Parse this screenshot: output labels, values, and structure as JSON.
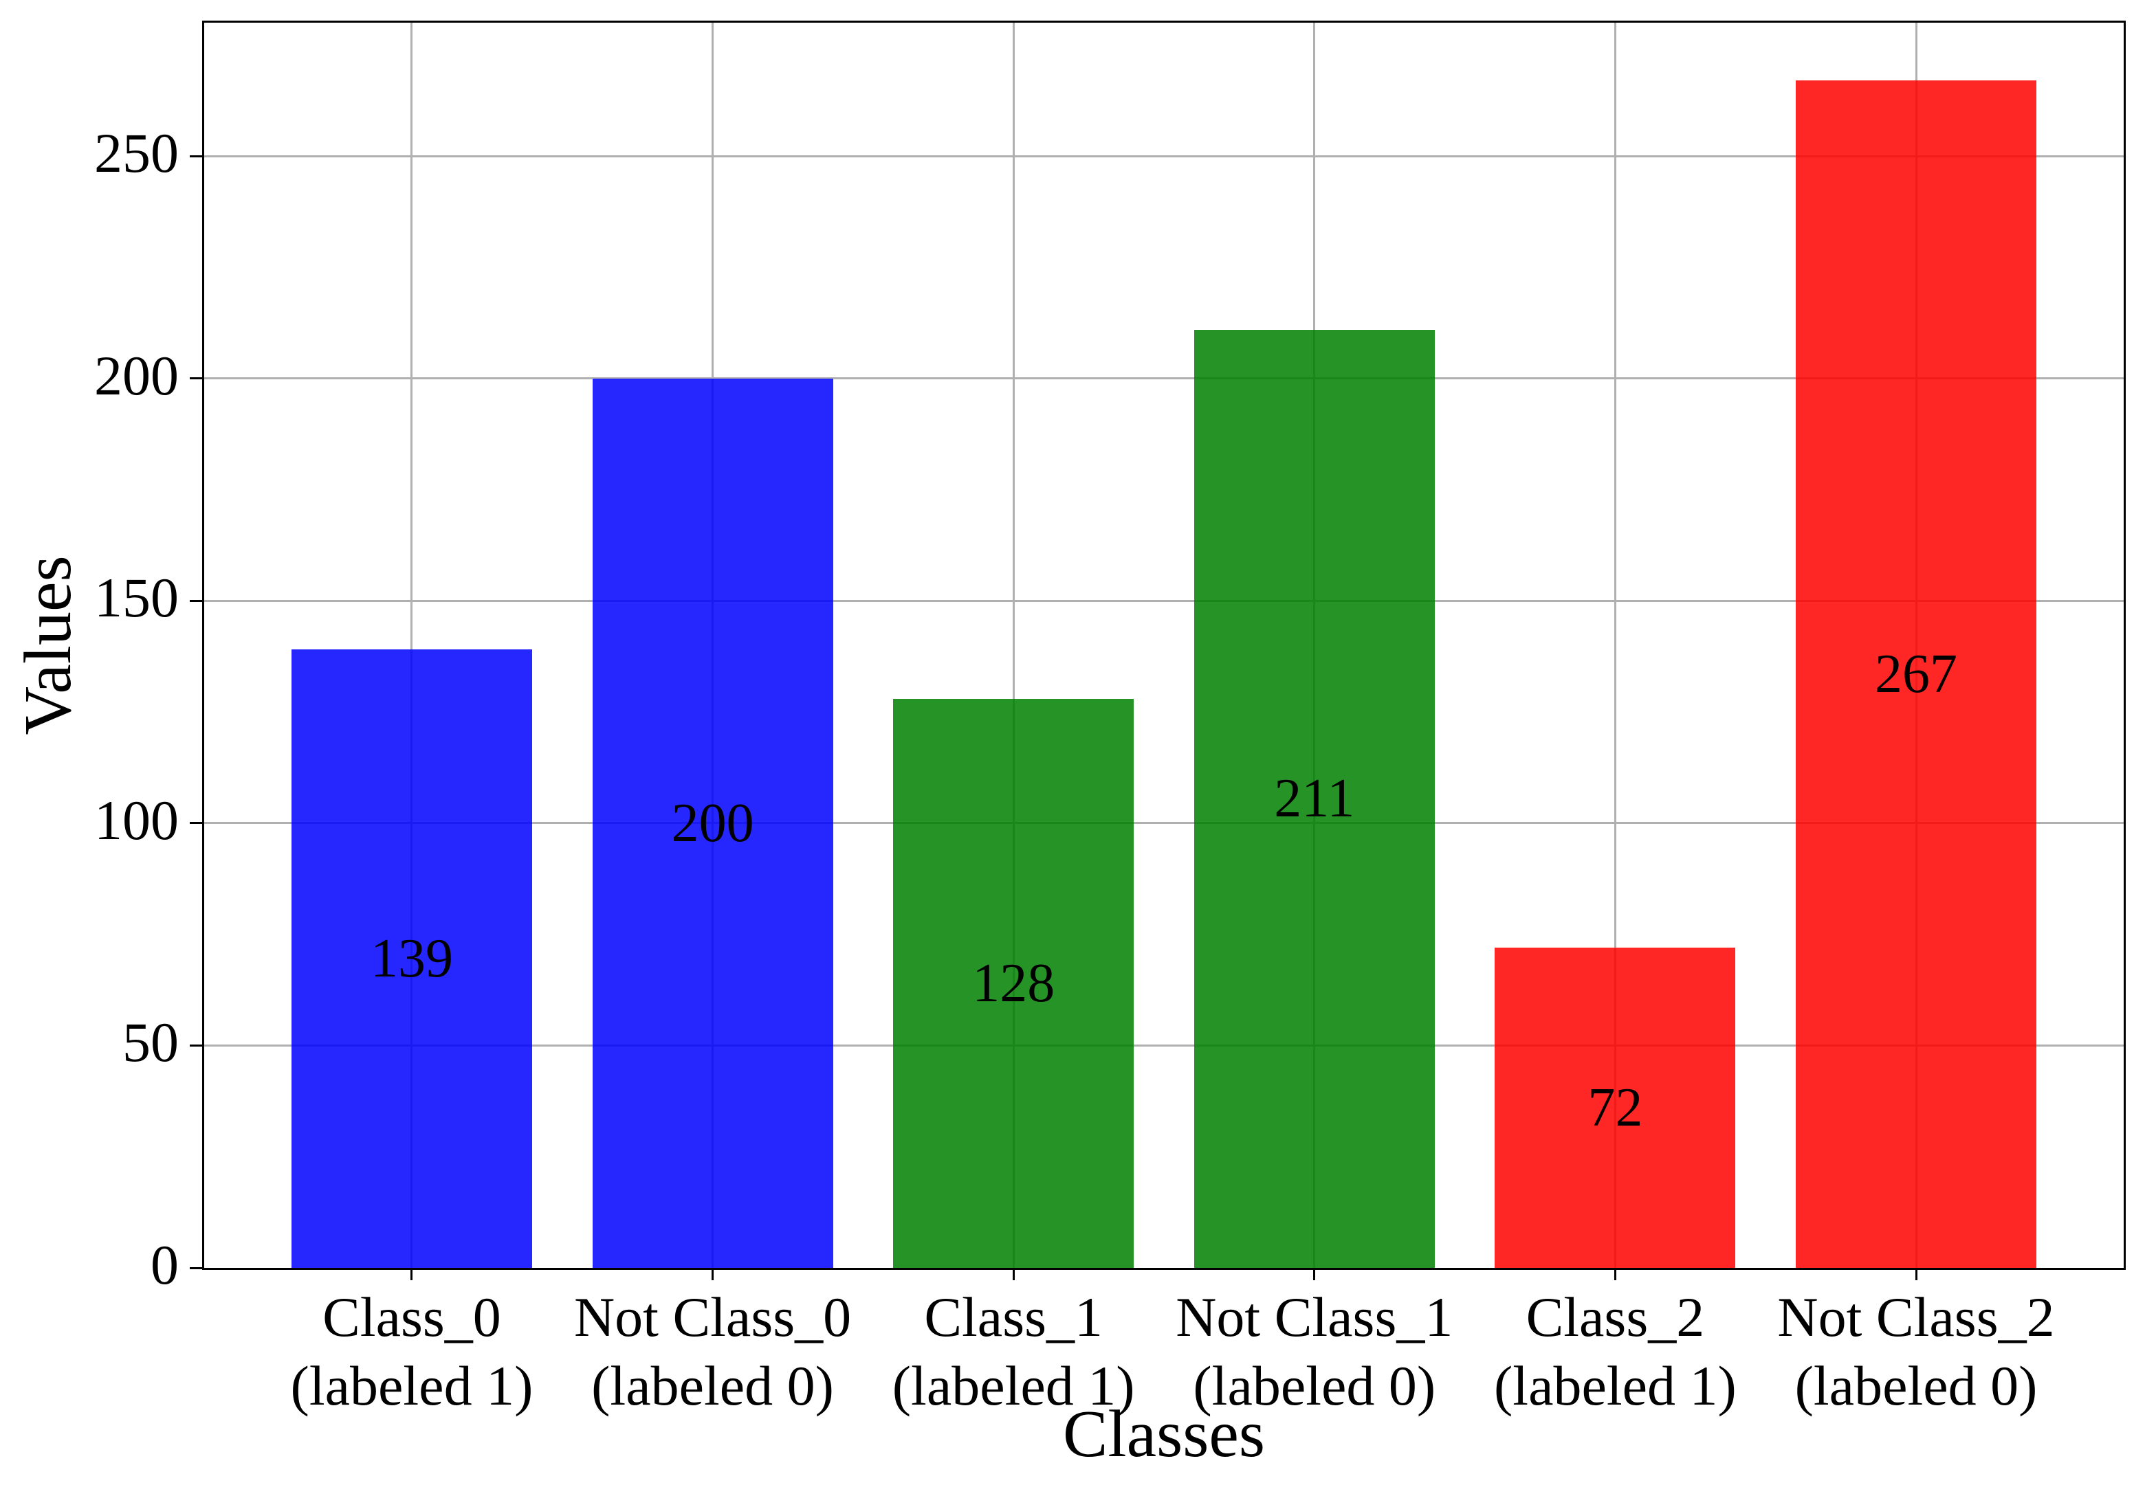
{
  "chart_data": {
    "type": "bar",
    "title": "",
    "xlabel": "Classes",
    "ylabel": "Values",
    "categories": [
      "Class_0\n(labeled 1)",
      "Not Class_0\n(labeled 0)",
      "Class_1\n(labeled 1)",
      "Not Class_1\n(labeled 0)",
      "Class_2\n(labeled 1)",
      "Not Class_2\n(labeled 0)"
    ],
    "values": [
      139,
      200,
      128,
      211,
      72,
      267
    ],
    "bar_value_labels": [
      "139",
      "200",
      "128",
      "211",
      "72",
      "267"
    ],
    "bar_colors": [
      "rgba(0,0,255,0.85)",
      "rgba(0,0,255,0.85)",
      "rgba(0,128,0,0.85)",
      "rgba(0,128,0,0.85)",
      "rgba(255,0,0,0.85)",
      "rgba(255,0,0,0.85)"
    ],
    "yticks": [
      0,
      50,
      100,
      150,
      200,
      250
    ],
    "ylim": [
      0,
      280
    ],
    "grid": true,
    "grid_color": "#b0b0b0",
    "spine_color": "#000000",
    "legend_position": "none"
  }
}
